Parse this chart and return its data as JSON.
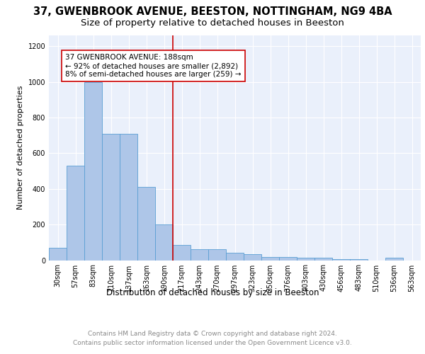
{
  "title1": "37, GWENBROOK AVENUE, BEESTON, NOTTINGHAM, NG9 4BA",
  "title2": "Size of property relative to detached houses in Beeston",
  "xlabel": "Distribution of detached houses by size in Beeston",
  "ylabel": "Number of detached properties",
  "categories": [
    "30sqm",
    "57sqm",
    "83sqm",
    "110sqm",
    "137sqm",
    "163sqm",
    "190sqm",
    "217sqm",
    "243sqm",
    "270sqm",
    "297sqm",
    "323sqm",
    "350sqm",
    "376sqm",
    "403sqm",
    "430sqm",
    "456sqm",
    "483sqm",
    "510sqm",
    "536sqm",
    "563sqm"
  ],
  "values": [
    70,
    530,
    1000,
    710,
    710,
    410,
    200,
    85,
    60,
    60,
    42,
    32,
    18,
    18,
    14,
    14,
    5,
    5,
    0,
    13,
    0
  ],
  "bar_color": "#aec6e8",
  "bar_edge_color": "#5a9fd4",
  "bar_width": 1.0,
  "vline_x": 6.5,
  "vline_color": "#cc0000",
  "annotation_text": "37 GWENBROOK AVENUE: 188sqm\n← 92% of detached houses are smaller (2,892)\n8% of semi-detached houses are larger (259) →",
  "annotation_box_color": "#ffffff",
  "annotation_box_edge_color": "#cc0000",
  "ylim": [
    0,
    1260
  ],
  "yticks": [
    0,
    200,
    400,
    600,
    800,
    1000,
    1200
  ],
  "footnote": "Contains HM Land Registry data © Crown copyright and database right 2024.\nContains public sector information licensed under the Open Government Licence v3.0.",
  "plot_bg_color": "#eaf0fb",
  "fig_bg_color": "#ffffff",
  "title1_fontsize": 10.5,
  "title2_fontsize": 9.5,
  "xlabel_fontsize": 8.5,
  "ylabel_fontsize": 8,
  "tick_fontsize": 7,
  "annot_fontsize": 7.5,
  "footnote_fontsize": 6.5,
  "footnote_color": "#888888"
}
